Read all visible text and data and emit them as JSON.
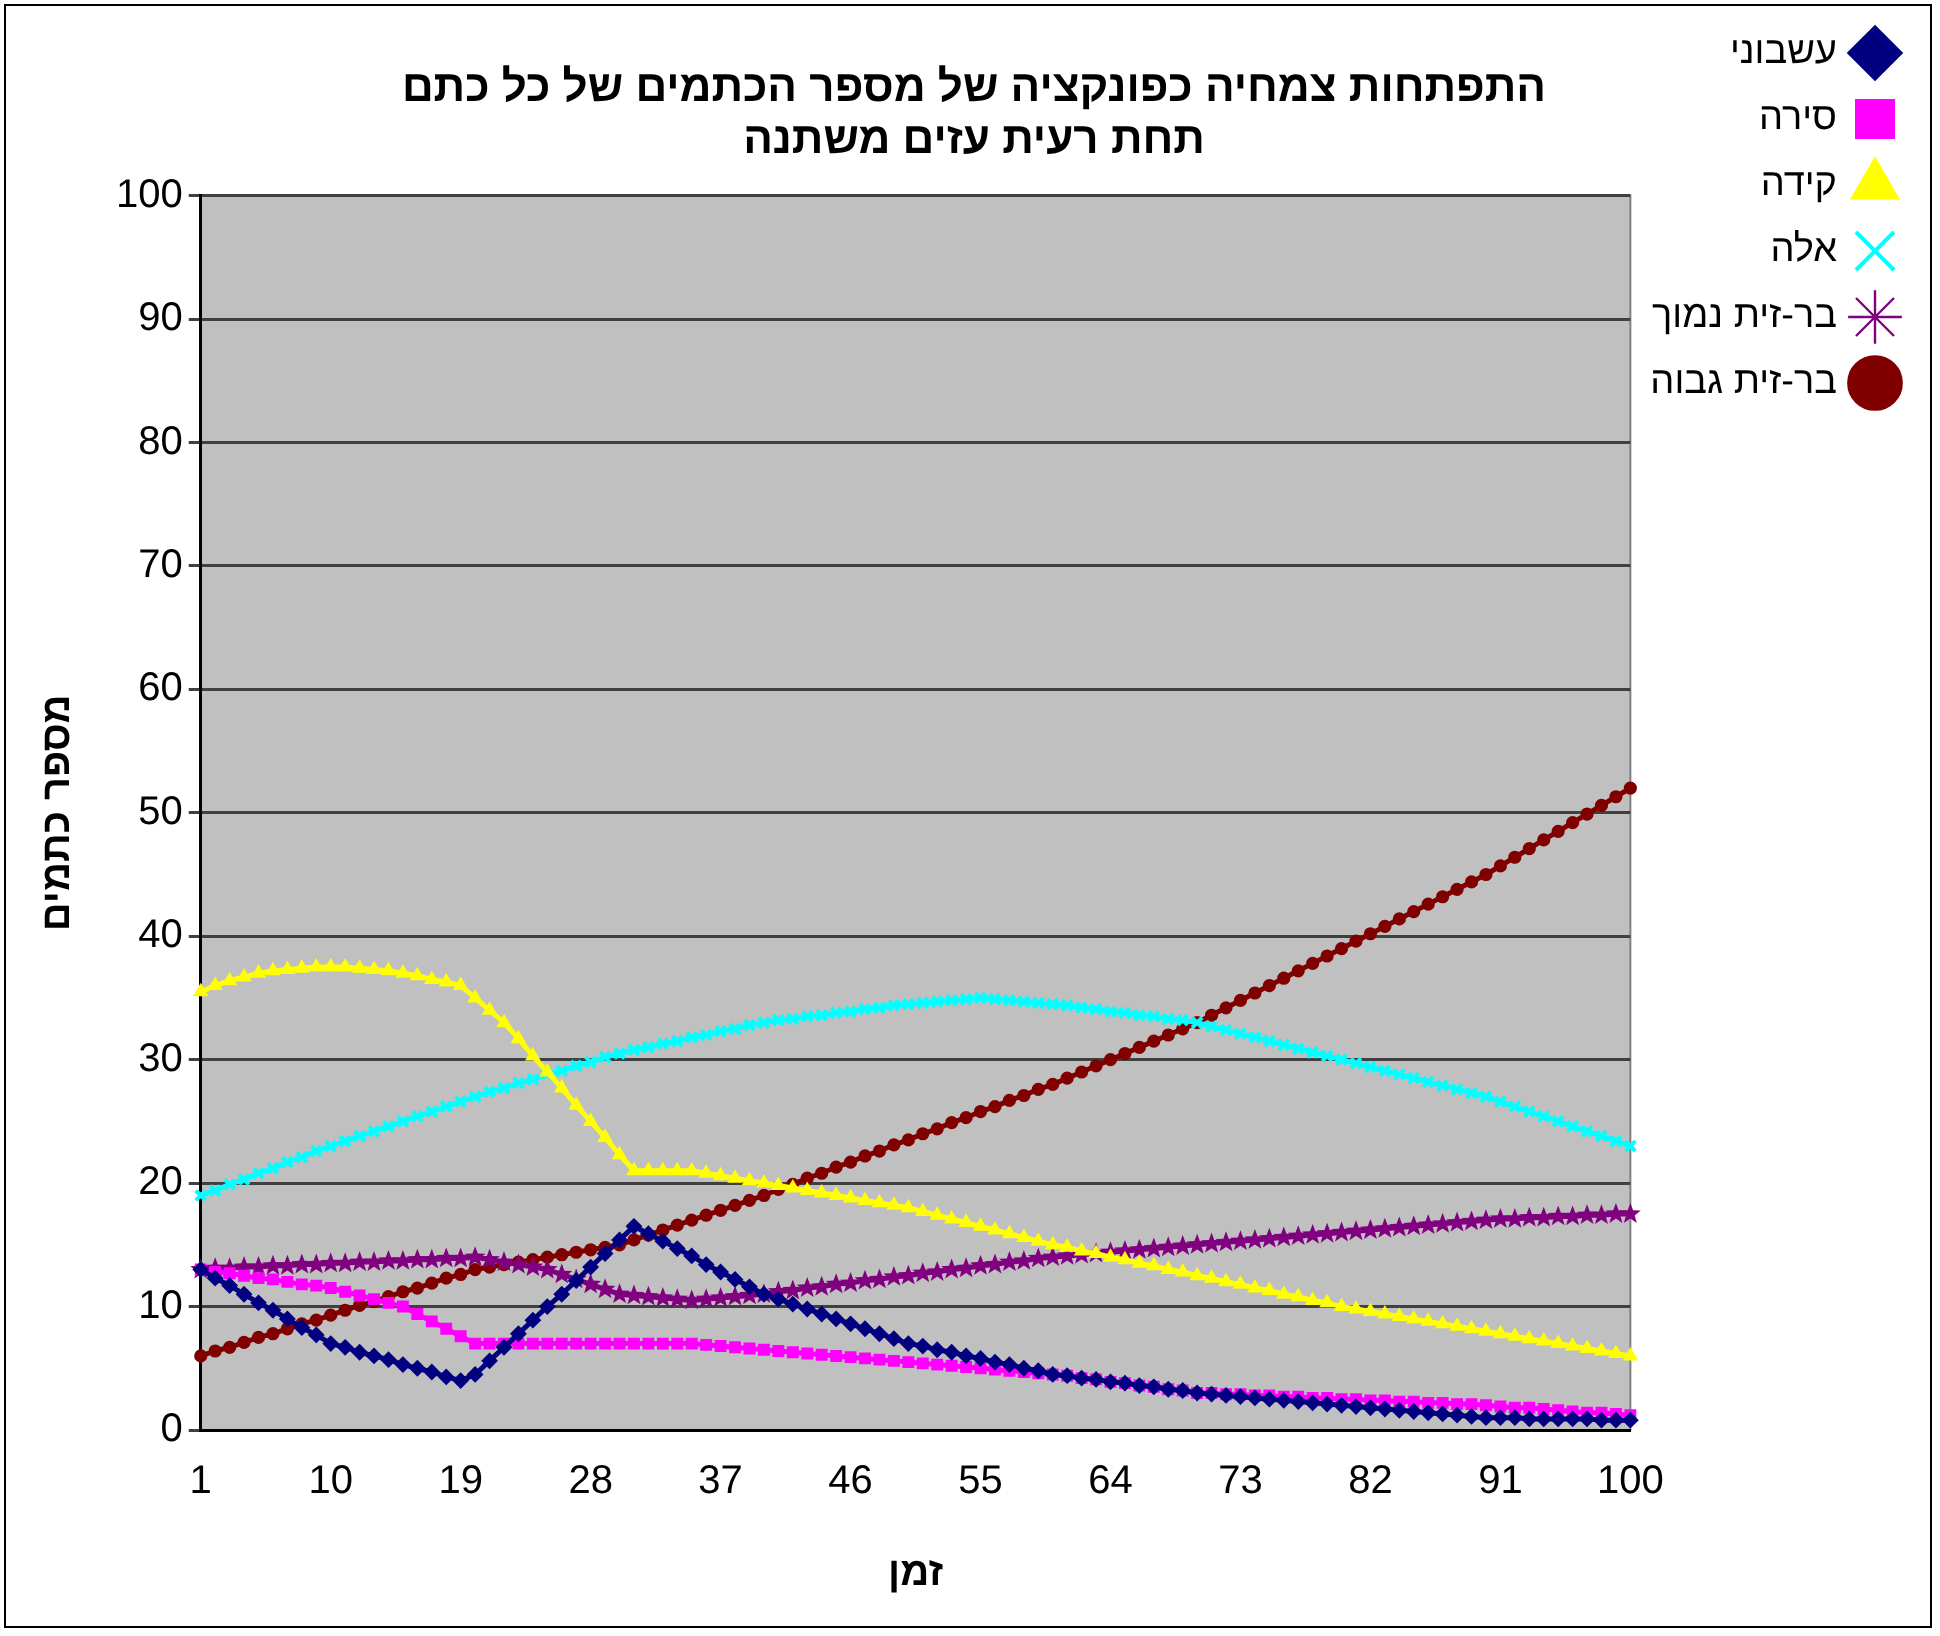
{
  "chart_data": {
    "type": "line",
    "title": "התפתחות צמחיה כפונקציה של מספר הכתמים של כל כתם\nתחת רעית עזים משתנה",
    "xlabel": "זמן",
    "ylabel": "מספר כתמים",
    "categories": [
      "1",
      null,
      null,
      null,
      null,
      null,
      null,
      null,
      null,
      "10",
      null,
      null,
      null,
      null,
      null,
      null,
      null,
      null,
      "19",
      null,
      null,
      null,
      null,
      null,
      null,
      null,
      null,
      "28",
      null,
      null,
      null,
      null,
      null,
      null,
      null,
      null,
      "37",
      null,
      null,
      null,
      null,
      null,
      null,
      null,
      null,
      "46",
      null,
      null,
      null,
      null,
      null,
      null,
      null,
      null,
      "55",
      null,
      null,
      null,
      null,
      null,
      null,
      null,
      null,
      "64",
      null,
      null,
      null,
      null,
      null,
      null,
      null,
      null,
      "73",
      null,
      null,
      null,
      null,
      null,
      null,
      null,
      null,
      "82",
      null,
      null,
      null,
      null,
      null,
      null,
      null,
      null,
      "91",
      null,
      null,
      null,
      null,
      null,
      null,
      null,
      null,
      "100"
    ],
    "ylim": [
      0,
      100
    ],
    "yticks": [
      0,
      10,
      20,
      30,
      40,
      50,
      60,
      70,
      80,
      90,
      100
    ],
    "grid": "y",
    "legend": "top right",
    "line_style": "solid",
    "series": [
      {
        "name": "עשבוני",
        "color": "#000080",
        "marker": "diamond",
        "values": [
          13,
          12.3,
          11.7,
          11,
          10.3,
          9.7,
          9,
          8.3,
          7.7,
          7,
          6.7,
          6.3,
          6,
          5.7,
          5.3,
          5,
          4.7,
          4.3,
          4,
          4.5,
          5.6,
          6.7,
          7.8,
          8.9,
          10,
          11,
          12.1,
          13.2,
          14.3,
          15.4,
          16.5,
          15.9,
          15.3,
          14.7,
          14.1,
          13.4,
          12.8,
          12.2,
          11.6,
          11,
          10.6,
          10.2,
          9.8,
          9.4,
          9,
          8.6,
          8.2,
          7.8,
          7.4,
          7,
          6.8,
          6.5,
          6.3,
          6,
          5.8,
          5.5,
          5.3,
          5,
          4.8,
          4.5,
          4.4,
          4.2,
          4.1,
          3.9,
          3.8,
          3.6,
          3.5,
          3.3,
          3.2,
          3,
          2.9,
          2.8,
          2.7,
          2.6,
          2.5,
          2.4,
          2.3,
          2.2,
          2.1,
          2,
          1.9,
          1.8,
          1.7,
          1.6,
          1.5,
          1.4,
          1.3,
          1.2,
          1.1,
          1,
          1,
          1,
          0.9,
          0.9,
          0.9,
          0.9,
          0.9,
          0.8,
          0.8,
          0.8
        ]
      },
      {
        "name": "סירה",
        "color": "#ff00ff",
        "marker": "square",
        "values": [
          13,
          12.8,
          12.7,
          12.5,
          12.3,
          12.2,
          12,
          11.8,
          11.7,
          11.5,
          11.2,
          10.9,
          10.6,
          10.3,
          10,
          9.4,
          8.8,
          8.2,
          7.6,
          7,
          7,
          7,
          7,
          7,
          7,
          7,
          7,
          7,
          7,
          7,
          7,
          7,
          7,
          7,
          7,
          6.9,
          6.8,
          6.7,
          6.6,
          6.5,
          6.4,
          6.3,
          6.2,
          6.1,
          6,
          5.9,
          5.8,
          5.7,
          5.6,
          5.5,
          5.4,
          5.3,
          5.2,
          5.1,
          5,
          4.9,
          4.8,
          4.7,
          4.6,
          4.5,
          4.4,
          4.2,
          4.1,
          3.9,
          3.8,
          3.6,
          3.5,
          3.3,
          3.2,
          3,
          3,
          2.9,
          2.9,
          2.8,
          2.8,
          2.7,
          2.7,
          2.6,
          2.6,
          2.5,
          2.5,
          2.4,
          2.4,
          2.3,
          2.3,
          2.2,
          2.2,
          2.1,
          2.1,
          2,
          1.9,
          1.8,
          1.8,
          1.7,
          1.6,
          1.5,
          1.4,
          1.4,
          1.3,
          1.2
        ]
      },
      {
        "name": "קידה",
        "color": "#ffff00",
        "marker": "triangle",
        "values": [
          35.5,
          36,
          36.4,
          36.7,
          37,
          37.2,
          37.3,
          37.4,
          37.5,
          37.5,
          37.5,
          37.4,
          37.3,
          37.2,
          37,
          36.8,
          36.5,
          36.3,
          36,
          35,
          34,
          33,
          31.7,
          30.3,
          29,
          27.7,
          26.3,
          25,
          23.7,
          22.3,
          21,
          21,
          21,
          21,
          21,
          20.8,
          20.6,
          20.4,
          20.2,
          20,
          19.8,
          19.6,
          19.4,
          19.2,
          19,
          18.8,
          18.6,
          18.4,
          18.2,
          18,
          17.7,
          17.4,
          17.1,
          16.8,
          16.5,
          16.2,
          15.9,
          15.6,
          15.3,
          15,
          14.8,
          14.5,
          14.3,
          14,
          13.8,
          13.5,
          13.3,
          13,
          12.8,
          12.5,
          12.3,
          12,
          11.8,
          11.5,
          11.3,
          11,
          10.8,
          10.5,
          10.3,
          10,
          9.8,
          9.6,
          9.4,
          9.2,
          9,
          8.8,
          8.6,
          8.4,
          8.2,
          8,
          7.8,
          7.6,
          7.4,
          7.2,
          7,
          6.8,
          6.6,
          6.4,
          6.2,
          6
        ]
      },
      {
        "name": "אלה",
        "color": "#00ffff",
        "marker": "cross",
        "values": [
          19,
          19.4,
          19.9,
          20.3,
          20.8,
          21.2,
          21.7,
          22.1,
          22.6,
          23,
          23.4,
          23.8,
          24.2,
          24.6,
          25,
          25.4,
          25.8,
          26.2,
          26.6,
          27,
          27.4,
          27.7,
          28.1,
          28.4,
          28.8,
          29.1,
          29.5,
          29.8,
          30.2,
          30.5,
          30.8,
          31,
          31.3,
          31.5,
          31.8,
          32,
          32.3,
          32.5,
          32.8,
          33,
          33.2,
          33.3,
          33.5,
          33.6,
          33.8,
          33.9,
          34.1,
          34.2,
          34.4,
          34.5,
          34.6,
          34.7,
          34.8,
          34.9,
          35,
          34.9,
          34.8,
          34.7,
          34.6,
          34.5,
          34.4,
          34.2,
          34.1,
          33.9,
          33.8,
          33.6,
          33.5,
          33.3,
          33.2,
          33,
          32.7,
          32.4,
          32.1,
          31.8,
          31.5,
          31.2,
          30.9,
          30.6,
          30.3,
          30,
          29.7,
          29.4,
          29.1,
          28.8,
          28.5,
          28.2,
          27.9,
          27.6,
          27.3,
          27,
          26.6,
          26.2,
          25.8,
          25.4,
          25,
          24.6,
          24.2,
          23.8,
          23.4,
          23
        ]
      },
      {
        "name": "בר-זית נמוך",
        "color": "#800080",
        "marker": "star",
        "values": [
          13,
          13.1,
          13.1,
          13.2,
          13.2,
          13.3,
          13.3,
          13.4,
          13.4,
          13.5,
          13.5,
          13.6,
          13.6,
          13.7,
          13.7,
          13.8,
          13.8,
          13.9,
          13.9,
          14,
          13.8,
          13.6,
          13.4,
          13.2,
          13,
          12.6,
          12.2,
          11.8,
          11.4,
          11,
          10.9,
          10.8,
          10.7,
          10.6,
          10.5,
          10.6,
          10.7,
          10.8,
          10.9,
          11,
          11.2,
          11.3,
          11.5,
          11.6,
          11.8,
          11.9,
          12.1,
          12.2,
          12.4,
          12.5,
          12.7,
          12.8,
          13,
          13.1,
          13.3,
          13.4,
          13.6,
          13.7,
          13.9,
          14,
          14.1,
          14.2,
          14.3,
          14.4,
          14.5,
          14.6,
          14.7,
          14.8,
          14.9,
          15,
          15.1,
          15.2,
          15.3,
          15.4,
          15.5,
          15.6,
          15.7,
          15.8,
          15.9,
          16,
          16.1,
          16.2,
          16.3,
          16.4,
          16.5,
          16.6,
          16.7,
          16.8,
          16.9,
          17,
          17.1,
          17.1,
          17.2,
          17.2,
          17.3,
          17.3,
          17.4,
          17.4,
          17.5,
          17.5
        ]
      },
      {
        "name": "בר-זית גבוה",
        "color": "#800000",
        "marker": "circle",
        "values": [
          6,
          6.4,
          6.7,
          7.1,
          7.5,
          7.8,
          8.2,
          8.6,
          8.9,
          9.3,
          9.7,
          10.1,
          10.4,
          10.8,
          11.2,
          11.5,
          11.9,
          12.3,
          12.6,
          13,
          13.2,
          13.4,
          13.6,
          13.8,
          14,
          14.2,
          14.4,
          14.6,
          14.8,
          15,
          15.4,
          15.8,
          16.2,
          16.6,
          17,
          17.4,
          17.8,
          18.2,
          18.6,
          19,
          19.5,
          19.9,
          20.4,
          20.8,
          21.3,
          21.7,
          22.2,
          22.6,
          23.1,
          23.5,
          24,
          24.4,
          24.9,
          25.3,
          25.8,
          26.2,
          26.7,
          27.1,
          27.6,
          28,
          28.5,
          29,
          29.5,
          30,
          30.5,
          31,
          31.5,
          32,
          32.5,
          33,
          33.6,
          34.2,
          34.8,
          35.4,
          36,
          36.6,
          37.2,
          37.8,
          38.4,
          39,
          39.6,
          40.2,
          40.8,
          41.4,
          42,
          42.6,
          43.2,
          43.8,
          44.4,
          45,
          45.7,
          46.4,
          47.1,
          47.8,
          48.5,
          49.2,
          49.9,
          50.6,
          51.3,
          52
        ]
      }
    ]
  }
}
